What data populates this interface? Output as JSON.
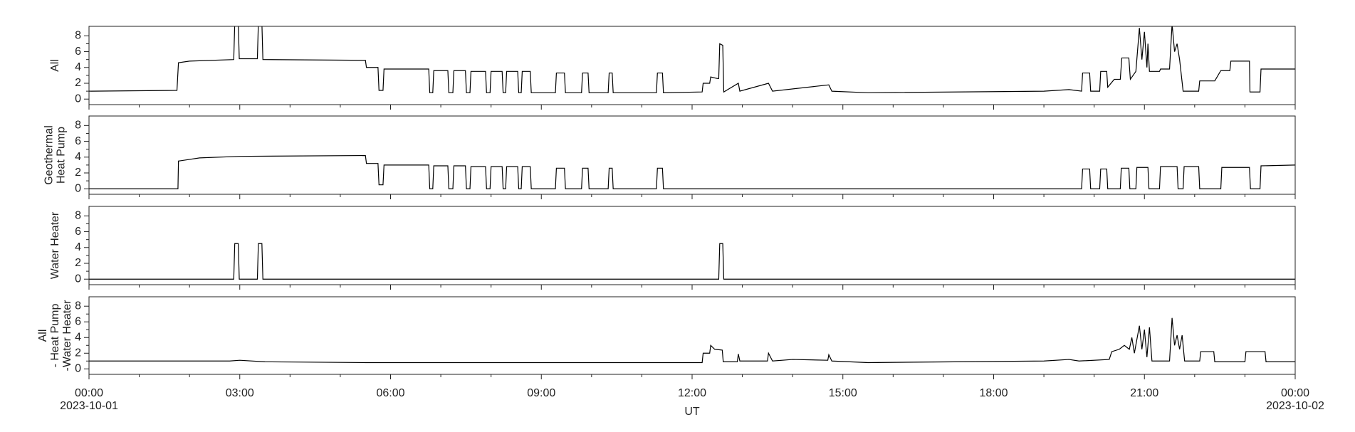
{
  "chart_data": [
    {
      "type": "line",
      "ylabel": [
        "All"
      ],
      "color": "#000000",
      "xlim": [
        0,
        24
      ],
      "xticks": [
        0,
        3,
        6,
        9,
        12,
        15,
        18,
        21,
        24
      ],
      "xminorticks": [
        1,
        2,
        4,
        5,
        7,
        8,
        10,
        11,
        13,
        14,
        16,
        17,
        19,
        20,
        22,
        23
      ],
      "ylim": [
        -0.7,
        9.2
      ],
      "yticks": [
        0,
        2,
        4,
        6,
        8
      ],
      "yminorticks": [
        1,
        3,
        5,
        7
      ],
      "x": [
        0,
        1.75,
        1.78,
        2.0,
        2.88,
        2.9,
        2.97,
        2.99,
        3.35,
        3.37,
        3.44,
        3.46,
        5.5,
        5.52,
        5.75,
        5.77,
        5.85,
        5.87,
        6.76,
        6.78,
        6.84,
        6.86,
        7.14,
        7.16,
        7.24,
        7.26,
        7.49,
        7.51,
        7.58,
        7.6,
        7.89,
        7.91,
        7.98,
        8.0,
        8.22,
        8.24,
        8.29,
        8.31,
        8.53,
        8.55,
        8.6,
        8.62,
        8.78,
        8.8,
        9.28,
        9.3,
        9.46,
        9.48,
        9.8,
        9.82,
        9.93,
        9.95,
        10.33,
        10.35,
        10.41,
        10.43,
        11.29,
        11.31,
        11.41,
        11.43,
        12.2,
        12.22,
        12.35,
        12.37,
        12.5,
        12.53,
        12.55,
        12.61,
        12.63,
        12.92,
        12.95,
        13.52,
        13.6,
        14.72,
        14.78,
        15.5,
        19.0,
        19.5,
        19.75,
        19.77,
        19.91,
        19.93,
        20.11,
        20.13,
        20.25,
        20.27,
        20.4,
        20.52,
        20.55,
        20.69,
        20.72,
        20.83,
        20.9,
        20.95,
        21.0,
        21.05,
        21.07,
        21.1,
        21.3,
        21.32,
        21.5,
        21.55,
        21.6,
        21.65,
        21.7,
        21.77,
        21.8,
        22.08,
        22.1,
        22.4,
        22.52,
        22.7,
        22.72,
        23.09,
        23.1,
        23.3,
        23.32,
        24
      ],
      "values": [
        1.0,
        1.1,
        4.6,
        4.8,
        5.0,
        9.6,
        9.6,
        5.1,
        5.1,
        9.6,
        9.6,
        5.0,
        4.9,
        4.0,
        4.0,
        1.1,
        1.1,
        3.8,
        3.8,
        0.8,
        0.8,
        3.6,
        3.6,
        0.8,
        0.8,
        3.6,
        3.6,
        0.8,
        0.8,
        3.5,
        3.5,
        0.8,
        0.8,
        3.5,
        3.5,
        0.8,
        0.8,
        3.5,
        3.5,
        0.8,
        0.8,
        3.5,
        3.5,
        0.8,
        0.8,
        3.3,
        3.3,
        0.8,
        0.8,
        3.3,
        3.3,
        0.8,
        0.8,
        3.3,
        3.3,
        0.8,
        0.8,
        3.3,
        3.3,
        0.8,
        0.9,
        2.0,
        2.0,
        2.8,
        2.6,
        2.6,
        7.0,
        6.8,
        0.9,
        2.0,
        1.0,
        2.0,
        1.0,
        1.8,
        1.0,
        0.8,
        1.0,
        1.2,
        1.0,
        3.3,
        3.3,
        1.0,
        1.0,
        3.5,
        3.5,
        1.5,
        2.5,
        2.5,
        5.2,
        5.2,
        2.5,
        3.5,
        9.0,
        5.0,
        8.5,
        4.0,
        7.0,
        3.5,
        3.5,
        3.8,
        3.8,
        9.5,
        6.0,
        7.0,
        5.0,
        1.0,
        1.0,
        1.0,
        2.3,
        2.3,
        3.6,
        3.6,
        4.8,
        4.8,
        0.9,
        0.9,
        3.8,
        3.8
      ]
    },
    {
      "type": "line",
      "ylabel": [
        "Geothermal",
        "Heat Pump"
      ],
      "color": "#000000",
      "xlim": [
        0,
        24
      ],
      "xticks": [
        0,
        3,
        6,
        9,
        12,
        15,
        18,
        21,
        24
      ],
      "xminorticks": [
        1,
        2,
        4,
        5,
        7,
        8,
        10,
        11,
        13,
        14,
        16,
        17,
        19,
        20,
        22,
        23
      ],
      "ylim": [
        -0.7,
        9.2
      ],
      "yticks": [
        0,
        2,
        4,
        6,
        8
      ],
      "yminorticks": [
        1,
        3,
        5,
        7
      ],
      "x": [
        0,
        1.77,
        1.78,
        2.2,
        3.0,
        5.5,
        5.52,
        5.75,
        5.77,
        5.85,
        5.87,
        6.76,
        6.78,
        6.84,
        6.86,
        7.14,
        7.16,
        7.24,
        7.26,
        7.49,
        7.51,
        7.58,
        7.6,
        7.89,
        7.91,
        7.98,
        8.0,
        8.22,
        8.24,
        8.29,
        8.31,
        8.53,
        8.55,
        8.6,
        8.62,
        8.78,
        8.8,
        9.28,
        9.3,
        9.46,
        9.48,
        9.8,
        9.82,
        9.93,
        9.95,
        10.33,
        10.35,
        10.41,
        10.43,
        11.29,
        11.31,
        11.41,
        11.43,
        19.75,
        19.77,
        19.91,
        19.93,
        20.11,
        20.13,
        20.25,
        20.27,
        20.52,
        20.54,
        20.69,
        20.71,
        20.83,
        20.85,
        21.07,
        21.09,
        21.3,
        21.32,
        21.65,
        21.67,
        21.77,
        21.79,
        22.08,
        22.1,
        22.52,
        22.54,
        23.09,
        23.11,
        23.3,
        23.32,
        24
      ],
      "values": [
        0,
        0,
        3.5,
        3.9,
        4.1,
        4.2,
        3.2,
        3.2,
        0.5,
        0.5,
        3.0,
        3.0,
        0,
        0,
        2.9,
        2.9,
        0,
        0,
        2.9,
        2.9,
        0,
        0,
        2.8,
        2.8,
        0,
        0,
        2.8,
        2.8,
        0,
        0,
        2.8,
        2.8,
        0,
        0,
        2.8,
        2.8,
        0,
        0,
        2.6,
        2.6,
        0,
        0,
        2.6,
        2.6,
        0,
        0,
        2.6,
        2.6,
        0,
        0,
        2.6,
        2.6,
        0,
        0,
        2.5,
        2.5,
        0,
        0,
        2.5,
        2.5,
        0,
        0,
        2.6,
        2.6,
        0,
        0,
        2.7,
        2.7,
        0,
        0,
        2.8,
        2.8,
        0,
        0,
        2.8,
        2.8,
        0,
        0,
        2.7,
        2.7,
        0,
        0,
        2.9,
        3.0
      ]
    },
    {
      "type": "line",
      "ylabel": [
        "Water Heater"
      ],
      "color": "#000000",
      "xlim": [
        0,
        24
      ],
      "xticks": [
        0,
        3,
        6,
        9,
        12,
        15,
        18,
        21,
        24
      ],
      "xminorticks": [
        1,
        2,
        4,
        5,
        7,
        8,
        10,
        11,
        13,
        14,
        16,
        17,
        19,
        20,
        22,
        23
      ],
      "ylim": [
        -0.7,
        9.2
      ],
      "yticks": [
        0,
        2,
        4,
        6,
        8
      ],
      "yminorticks": [
        1,
        3,
        5,
        7
      ],
      "x": [
        0,
        2.88,
        2.9,
        2.97,
        2.99,
        3.35,
        3.37,
        3.44,
        3.46,
        12.53,
        12.55,
        12.61,
        12.63,
        24
      ],
      "values": [
        0,
        0,
        4.5,
        4.5,
        0,
        0,
        4.5,
        4.5,
        0,
        0,
        4.5,
        4.5,
        0,
        0
      ]
    },
    {
      "type": "line",
      "ylabel": [
        "All",
        "- Heat Pump",
        "-Water Heater"
      ],
      "color": "#000000",
      "xlim": [
        0,
        24
      ],
      "xticks": [
        {
          "value": 0,
          "label": "00:00"
        },
        {
          "value": 3,
          "label": "03:00"
        },
        {
          "value": 6,
          "label": "06:00"
        },
        {
          "value": 9,
          "label": "09:00"
        },
        {
          "value": 12,
          "label": "12:00"
        },
        {
          "value": 15,
          "label": "15:00"
        },
        {
          "value": 18,
          "label": "18:00"
        },
        {
          "value": 21,
          "label": "21:00"
        },
        {
          "value": 24,
          "label": "00:00"
        }
      ],
      "xtick_dates": [
        {
          "value": 0,
          "label": "2023-10-01"
        },
        {
          "value": 24,
          "label": "2023-10-02"
        }
      ],
      "xlabel": "UT",
      "xminorticks": [
        1,
        2,
        4,
        5,
        7,
        8,
        10,
        11,
        13,
        14,
        16,
        17,
        19,
        20,
        22,
        23
      ],
      "ylim": [
        -0.7,
        9.2
      ],
      "yticks": [
        0,
        2,
        4,
        6,
        8
      ],
      "yminorticks": [
        1,
        3,
        5,
        7
      ],
      "x": [
        0,
        2.8,
        3.0,
        3.5,
        5.5,
        12.2,
        12.22,
        12.35,
        12.37,
        12.45,
        12.6,
        12.62,
        12.9,
        12.92,
        12.95,
        13.5,
        13.52,
        13.6,
        14.0,
        14.7,
        14.72,
        14.78,
        15.5,
        19.0,
        19.5,
        19.7,
        20.3,
        20.35,
        20.5,
        20.6,
        20.7,
        20.75,
        20.8,
        20.9,
        20.95,
        21.0,
        21.05,
        21.1,
        21.15,
        21.5,
        21.55,
        21.6,
        21.65,
        21.7,
        21.75,
        21.8,
        22.1,
        22.12,
        22.38,
        22.4,
        23.0,
        23.02,
        23.4,
        23.42,
        24
      ],
      "values": [
        1.0,
        1.0,
        1.1,
        0.9,
        0.8,
        0.8,
        2.0,
        2.0,
        3.0,
        2.5,
        2.4,
        0.9,
        0.9,
        1.9,
        1.0,
        1.0,
        2.0,
        1.0,
        1.2,
        1.1,
        1.8,
        1.0,
        0.8,
        1.0,
        1.2,
        1.0,
        1.2,
        2.2,
        2.5,
        3.0,
        2.5,
        4.0,
        2.0,
        5.5,
        2.5,
        5.0,
        1.5,
        5.3,
        1.0,
        1.0,
        6.5,
        3.0,
        4.3,
        2.5,
        4.3,
        1.0,
        1.0,
        2.2,
        2.2,
        0.9,
        0.9,
        2.2,
        2.2,
        0.9,
        0.9
      ]
    }
  ]
}
